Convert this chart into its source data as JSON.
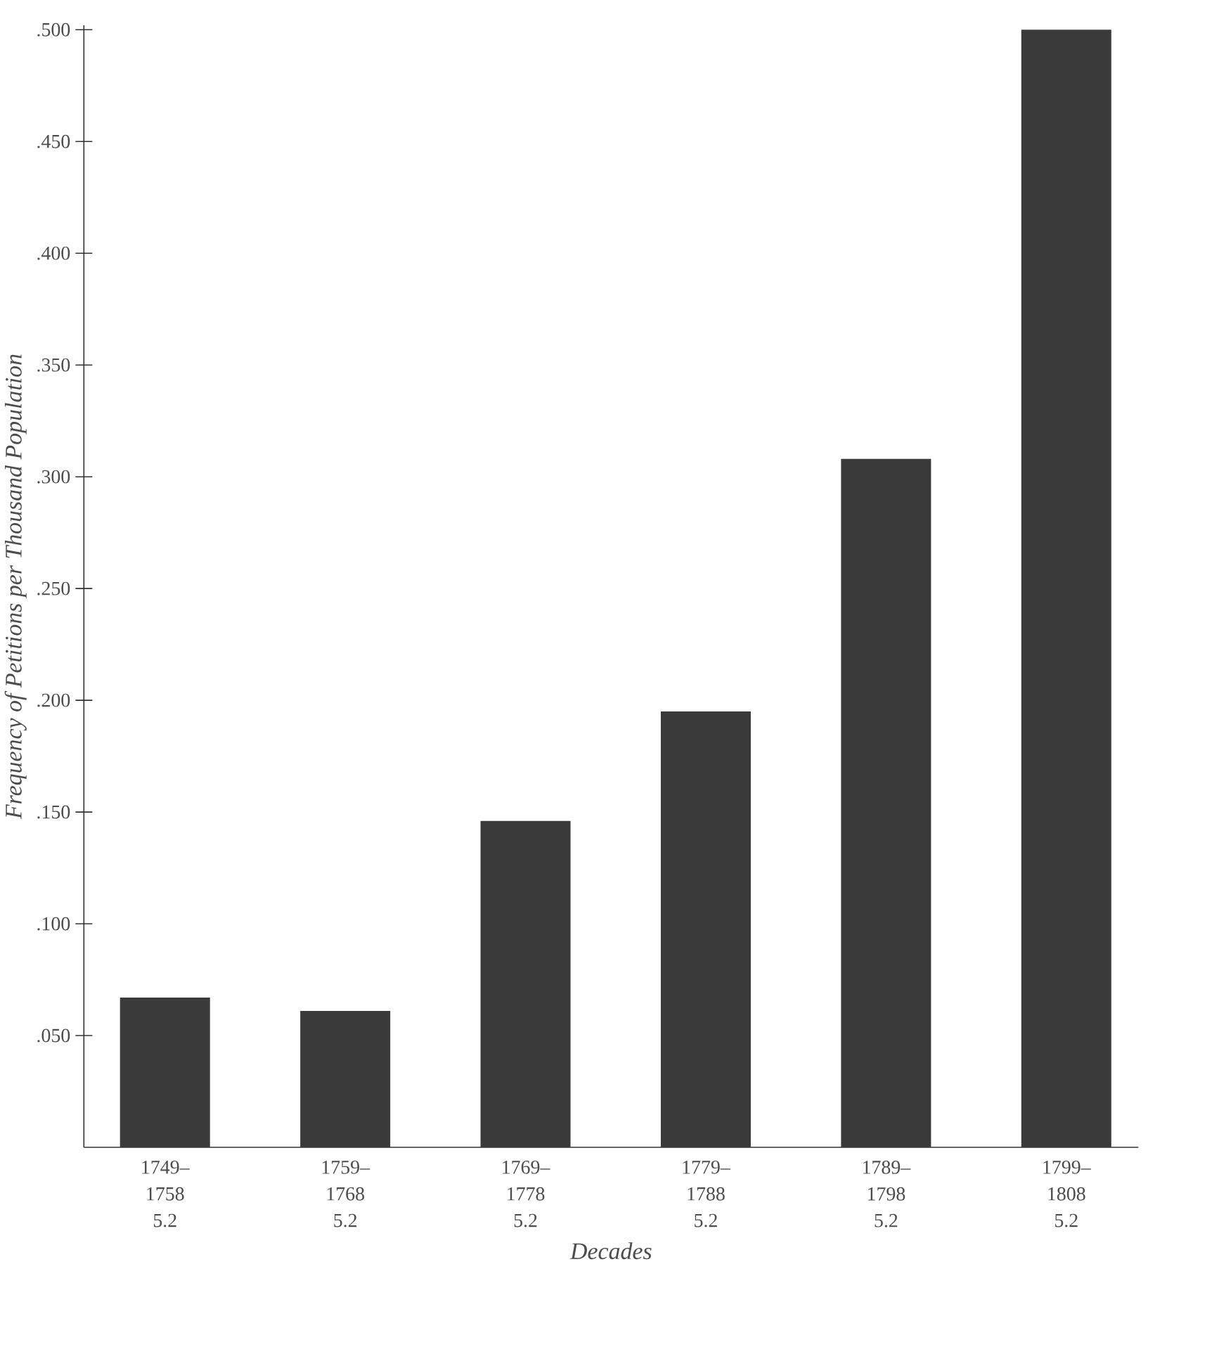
{
  "chart_data": {
    "type": "bar",
    "xlabel": "Decades",
    "ylabel": "Frequency of Petitions per Thousand Population",
    "categories": [
      "1749– 1758 5.2",
      "1759– 1768 5.2",
      "1769– 1778 5.2",
      "1779– 1788 5.2",
      "1789– 1798 5.2",
      "1799– 1808 5.2"
    ],
    "values": [
      0.067,
      0.061,
      0.146,
      0.195,
      0.308,
      0.5
    ],
    "color": "#3a3a3a",
    "ylim": [
      0,
      0.5
    ],
    "yticks": [
      {
        "value": 0.05,
        "label": ".050"
      },
      {
        "value": 0.1,
        "label": ".100"
      },
      {
        "value": 0.15,
        "label": ".150"
      },
      {
        "value": 0.2,
        "label": ".200"
      },
      {
        "value": 0.25,
        "label": ".250"
      },
      {
        "value": 0.3,
        "label": ".300"
      },
      {
        "value": 0.35,
        "label": ".350"
      },
      {
        "value": 0.4,
        "label": ".400"
      },
      {
        "value": 0.45,
        "label": ".450"
      },
      {
        "value": 0.5,
        "label": ".500"
      }
    ],
    "grid": false
  }
}
